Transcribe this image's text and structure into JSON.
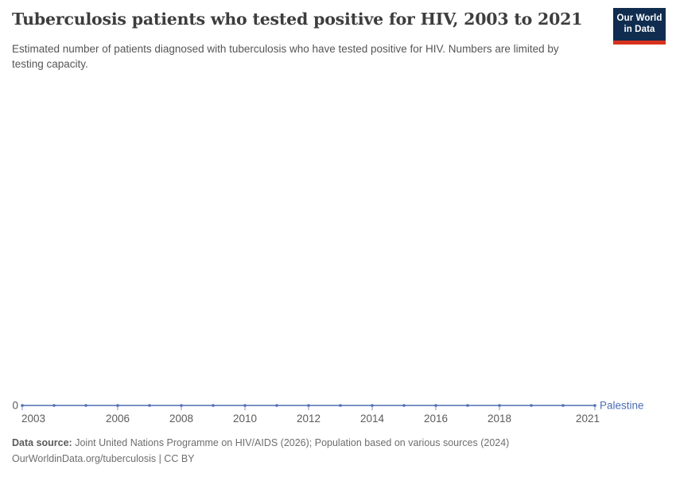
{
  "header": {
    "title": "Tuberculosis patients who tested positive for HIV, 2003 to 2021",
    "subtitle": "Estimated number of patients diagnosed with tuberculosis who have tested positive for HIV. Numbers are limited by testing capacity.",
    "logo": {
      "line1": "Our World",
      "line2": "in Data",
      "bg_color": "#102d50",
      "accent_color": "#d8321f"
    }
  },
  "chart_data": {
    "type": "line",
    "title": "Tuberculosis patients who tested positive for HIV, 2003 to 2021",
    "x": [
      2003,
      2004,
      2005,
      2006,
      2007,
      2008,
      2009,
      2010,
      2011,
      2012,
      2013,
      2014,
      2015,
      2016,
      2017,
      2018,
      2019,
      2020,
      2021
    ],
    "series": [
      {
        "name": "Palestine",
        "color": "#4d6eb4",
        "values": [
          0,
          0,
          0,
          0,
          0,
          0,
          0,
          0,
          0,
          0,
          0,
          0,
          0,
          0,
          0,
          0,
          0,
          0,
          0
        ]
      }
    ],
    "x_tick_labels": [
      2003,
      2006,
      2008,
      2010,
      2012,
      2014,
      2016,
      2018,
      2021
    ],
    "y_tick_labels": [
      "0"
    ],
    "ylim": [
      0,
      1
    ],
    "grid": false,
    "legend_position": "right-of-line-end",
    "axis_label_color": "#5b5b5b",
    "tick_mark_color": "#8297bd"
  },
  "footer": {
    "data_source_label": "Data source:",
    "data_source_text": "Joint United Nations Programme on HIV/AIDS (2026); Population based on various sources (2024)",
    "attribution": "OurWorldinData.org/tuberculosis | CC BY"
  }
}
